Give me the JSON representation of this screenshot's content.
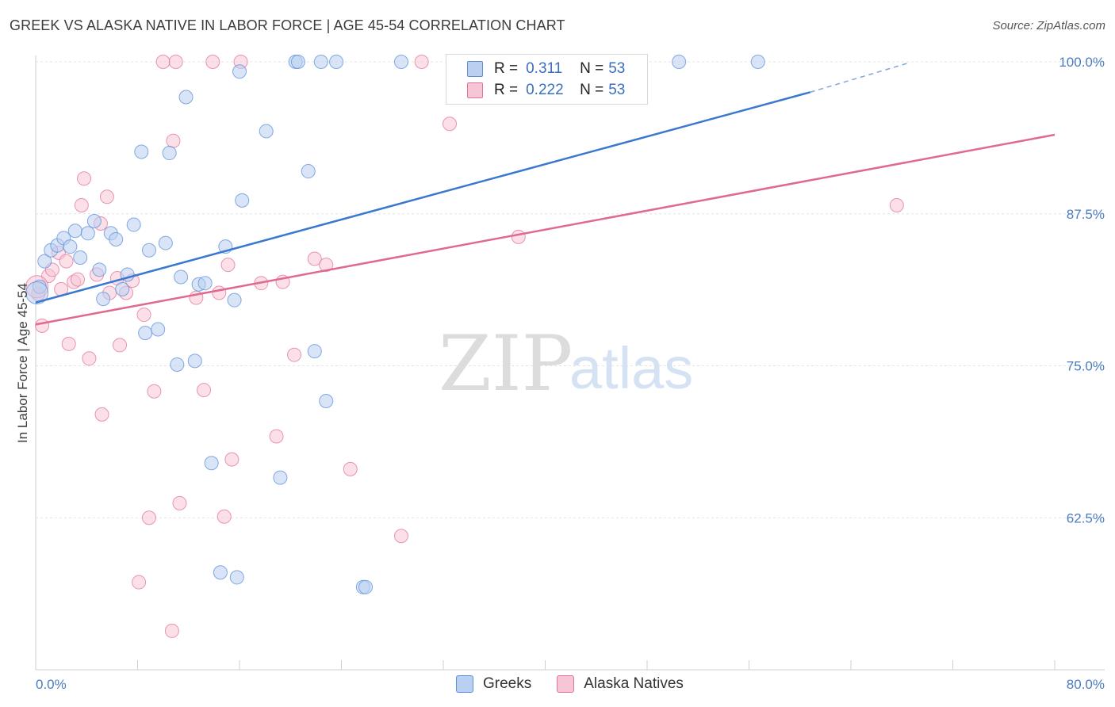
{
  "title": "GREEK VS ALASKA NATIVE IN LABOR FORCE | AGE 45-54 CORRELATION CHART",
  "source": "Source: ZipAtlas.com",
  "watermark": {
    "zip": "ZIP",
    "atlas": "atlas"
  },
  "colors": {
    "greeks": "#5b8fd9",
    "greeks_fill": "#b9d0f0",
    "alaska": "#e3739b",
    "alaska_fill": "#f7c6d6",
    "tick_text": "#4a7cc0",
    "grid": "#e6e6e6"
  },
  "legend": {
    "rows": [
      {
        "r_label": "R = ",
        "r_value": "0.311",
        "n_label": "N = ",
        "n_value": "53"
      },
      {
        "r_label": "R = ",
        "r_value": "0.222",
        "n_label": "N = ",
        "n_value": "53"
      }
    ]
  },
  "bottom_legend": [
    "Greeks",
    "Alaska Natives"
  ],
  "chart_data": {
    "type": "scatter",
    "xlabel": "",
    "ylabel": "In Labor Force | Age 45-54",
    "xlim": [
      0,
      80
    ],
    "ylim": [
      50,
      100
    ],
    "x_tick_labels": [
      "0.0%",
      "80.0%"
    ],
    "y_ticks": [
      62.5,
      75.0,
      87.5,
      100.0
    ],
    "y_tick_labels": [
      "62.5%",
      "75.0%",
      "87.5%",
      "100.0%"
    ],
    "grid": "horizontal dashed",
    "legend_placement": "top-center",
    "series": [
      {
        "name": "Greeks",
        "r": 0.311,
        "n": 53,
        "trend": {
          "x0": 0,
          "y0": 80.2,
          "x1": 60.8,
          "y1": 97.5,
          "dashed_to_x": 68.5,
          "dashed_to_y": 99.9
        },
        "points": [
          [
            0.3,
            81.5
          ],
          [
            0.7,
            83.6
          ],
          [
            1.2,
            84.5
          ],
          [
            1.7,
            84.9
          ],
          [
            2.2,
            85.5
          ],
          [
            2.7,
            84.8
          ],
          [
            3.1,
            86.1
          ],
          [
            3.5,
            83.9
          ],
          [
            4.1,
            85.9
          ],
          [
            4.6,
            86.9
          ],
          [
            5.0,
            82.9
          ],
          [
            5.3,
            80.5
          ],
          [
            5.9,
            85.9
          ],
          [
            6.3,
            85.4
          ],
          [
            6.8,
            81.3
          ],
          [
            7.2,
            82.5
          ],
          [
            7.7,
            86.6
          ],
          [
            8.3,
            92.6
          ],
          [
            8.6,
            77.7
          ],
          [
            8.9,
            84.5
          ],
          [
            9.6,
            78.0
          ],
          [
            10.2,
            85.1
          ],
          [
            10.5,
            92.5
          ],
          [
            11.1,
            75.1
          ],
          [
            11.4,
            82.3
          ],
          [
            11.8,
            97.1
          ],
          [
            12.5,
            75.4
          ],
          [
            12.8,
            81.7
          ],
          [
            13.3,
            81.8
          ],
          [
            13.8,
            67.0
          ],
          [
            14.5,
            58.0
          ],
          [
            14.9,
            84.8
          ],
          [
            15.8,
            57.6
          ],
          [
            15.6,
            80.4
          ],
          [
            16.0,
            99.2
          ],
          [
            16.2,
            88.6
          ],
          [
            18.1,
            94.3
          ],
          [
            19.2,
            65.8
          ],
          [
            20.4,
            100.0
          ],
          [
            20.6,
            100.0
          ],
          [
            21.4,
            91.0
          ],
          [
            21.9,
            76.2
          ],
          [
            22.4,
            100.0
          ],
          [
            22.8,
            72.1
          ],
          [
            23.6,
            100.0
          ],
          [
            25.7,
            56.8
          ],
          [
            25.9,
            56.8
          ],
          [
            28.7,
            100.0
          ],
          [
            35.7,
            100.0
          ],
          [
            45.1,
            100.0
          ],
          [
            50.5,
            100.0
          ],
          [
            56.7,
            100.0
          ],
          [
            0.1,
            81.0
          ]
        ]
      },
      {
        "name": "Alaska Natives",
        "r": 0.222,
        "n": 53,
        "trend": {
          "x0": 0,
          "y0": 78.4,
          "x1": 80,
          "y1": 94.0
        },
        "points": [
          [
            0.2,
            80.9
          ],
          [
            0.5,
            78.3
          ],
          [
            1.0,
            82.4
          ],
          [
            1.3,
            82.9
          ],
          [
            1.8,
            84.3
          ],
          [
            2.0,
            81.3
          ],
          [
            2.4,
            83.6
          ],
          [
            2.6,
            76.8
          ],
          [
            3.0,
            81.9
          ],
          [
            3.3,
            82.1
          ],
          [
            3.6,
            88.2
          ],
          [
            3.8,
            90.4
          ],
          [
            4.2,
            75.6
          ],
          [
            4.8,
            82.5
          ],
          [
            5.1,
            86.7
          ],
          [
            5.2,
            71.0
          ],
          [
            5.6,
            88.9
          ],
          [
            5.8,
            81.0
          ],
          [
            6.4,
            82.2
          ],
          [
            6.6,
            76.7
          ],
          [
            7.1,
            81.0
          ],
          [
            7.6,
            82.0
          ],
          [
            8.1,
            57.2
          ],
          [
            8.5,
            79.2
          ],
          [
            8.9,
            62.5
          ],
          [
            9.3,
            72.9
          ],
          [
            10.0,
            100.0
          ],
          [
            10.7,
            53.2
          ],
          [
            10.8,
            93.5
          ],
          [
            11.0,
            100.0
          ],
          [
            11.3,
            63.7
          ],
          [
            12.6,
            80.6
          ],
          [
            13.2,
            73.0
          ],
          [
            13.9,
            100.0
          ],
          [
            14.4,
            81.0
          ],
          [
            14.8,
            62.6
          ],
          [
            15.1,
            83.3
          ],
          [
            15.4,
            67.3
          ],
          [
            16.1,
            100.0
          ],
          [
            17.7,
            81.8
          ],
          [
            18.9,
            69.2
          ],
          [
            19.4,
            81.9
          ],
          [
            20.3,
            75.9
          ],
          [
            21.9,
            83.8
          ],
          [
            22.8,
            83.3
          ],
          [
            24.7,
            66.5
          ],
          [
            28.7,
            61.0
          ],
          [
            30.3,
            100.0
          ],
          [
            32.5,
            94.9
          ],
          [
            37.9,
            85.6
          ],
          [
            44.5,
            100.0
          ],
          [
            67.6,
            88.2
          ],
          [
            0.1,
            81.5
          ]
        ]
      }
    ]
  }
}
